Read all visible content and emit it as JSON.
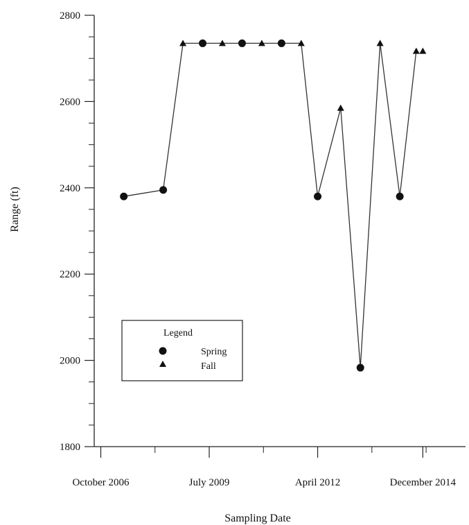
{
  "chart_data": {
    "type": "line",
    "title": "",
    "xlabel": "Sampling Date",
    "ylabel": "Range (ft)",
    "ylim": [
      1800,
      2800
    ],
    "y_ticks": [
      1800,
      2000,
      2200,
      2400,
      2600,
      2800
    ],
    "y_tick_labels": [
      "1800",
      "2000",
      "2200",
      "2400",
      "2600",
      "2800"
    ],
    "x_ticks": [
      "2006-10",
      "2009-07",
      "2012-04",
      "2014-12"
    ],
    "x_tick_labels": [
      "October 2006",
      "July 2009",
      "April 2012",
      "December 2014"
    ],
    "xlim": [
      "2006-08",
      "2016-01"
    ],
    "legend": {
      "title": "Legend",
      "placement": "bottom-left",
      "entries": [
        {
          "label": "Spring",
          "marker": "circle"
        },
        {
          "label": "Fall",
          "marker": "triangle"
        }
      ]
    },
    "points": [
      {
        "x": "2007-05",
        "y": 2380,
        "season": "Spring"
      },
      {
        "x": "2008-05",
        "y": 2395,
        "season": "Spring"
      },
      {
        "x": "2008-11",
        "y": 2735,
        "season": "Fall"
      },
      {
        "x": "2009-05",
        "y": 2735,
        "season": "Spring"
      },
      {
        "x": "2009-11",
        "y": 2735,
        "season": "Fall"
      },
      {
        "x": "2010-05",
        "y": 2735,
        "season": "Spring"
      },
      {
        "x": "2010-11",
        "y": 2735,
        "season": "Fall"
      },
      {
        "x": "2011-05",
        "y": 2735,
        "season": "Spring"
      },
      {
        "x": "2011-11",
        "y": 2735,
        "season": "Fall"
      },
      {
        "x": "2012-04",
        "y": 2380,
        "season": "Spring"
      },
      {
        "x": "2012-11",
        "y": 2585,
        "season": "Fall"
      },
      {
        "x": "2013-05",
        "y": 1983,
        "season": "Spring"
      },
      {
        "x": "2013-11",
        "y": 2735,
        "season": "Fall"
      },
      {
        "x": "2014-05",
        "y": 2380,
        "season": "Spring"
      },
      {
        "x": "2014-10",
        "y": 2717,
        "season": "Fall"
      },
      {
        "x": "2014-12",
        "y": 2717,
        "season": "Fall"
      }
    ],
    "line_connects_first_n_points": 15,
    "colors": {
      "line": "#333333",
      "marker": "#111111",
      "axis": "#222222"
    }
  }
}
